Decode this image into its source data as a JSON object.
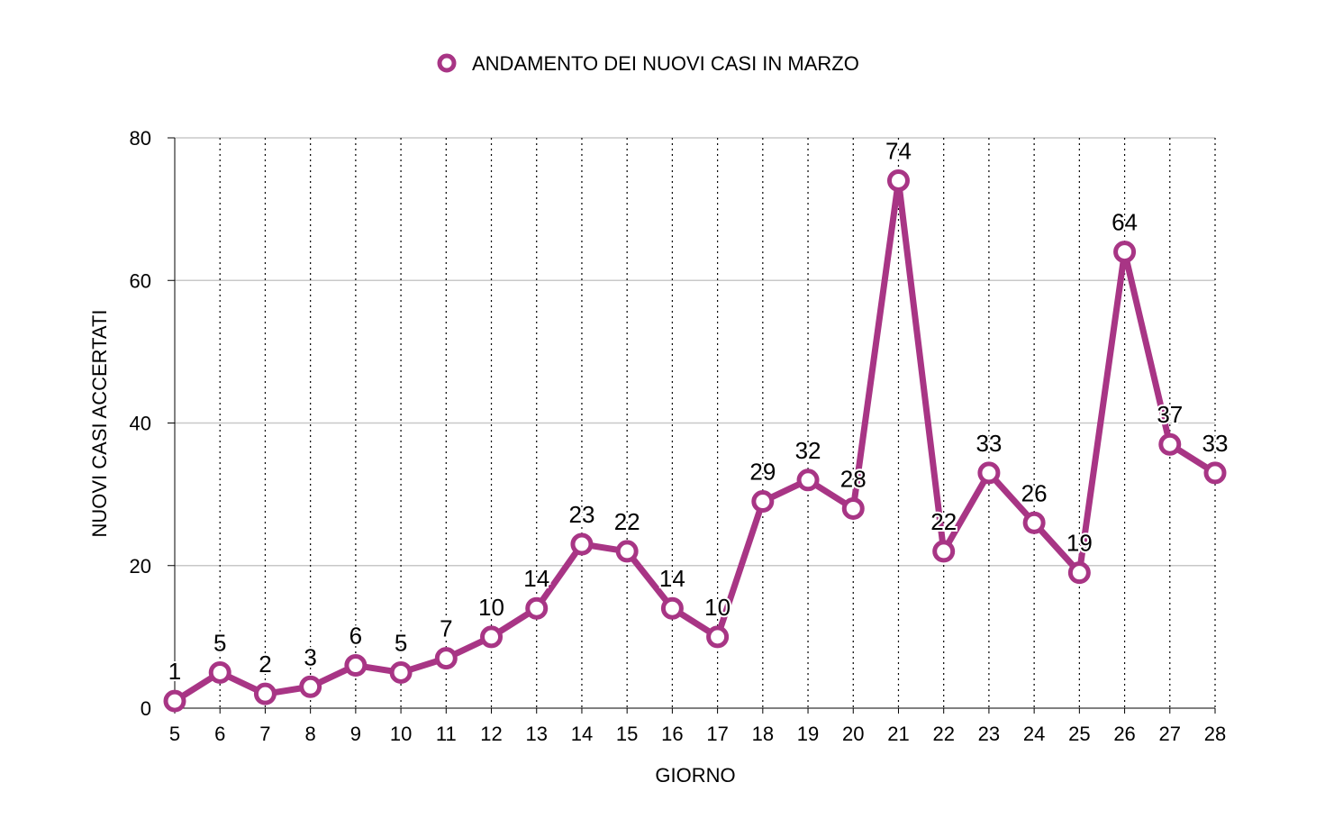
{
  "chart_data": {
    "type": "line",
    "legend": {
      "position": "top-center",
      "label": "ANDAMENTO DEI NUOVI CASI IN MARZO"
    },
    "xlabel": "GIORNO",
    "ylabel": "NUOVI CASI ACCERTATI",
    "x": [
      "5",
      "6",
      "7",
      "8",
      "9",
      "10",
      "11",
      "12",
      "13",
      "14",
      "15",
      "16",
      "17",
      "18",
      "19",
      "20",
      "21",
      "22",
      "23",
      "24",
      "25",
      "26",
      "27",
      "28"
    ],
    "ylim": [
      0,
      80
    ],
    "yticks": [
      "0",
      "20",
      "40",
      "60",
      "80"
    ],
    "grid": {
      "horizontal": "solid",
      "vertical": "dotted"
    },
    "series": [
      {
        "name": "ANDAMENTO DEI NUOVI CASI IN MARZO",
        "color": "#a83585",
        "values": [
          1,
          5,
          2,
          3,
          6,
          5,
          7,
          10,
          14,
          23,
          22,
          14,
          10,
          29,
          32,
          28,
          74,
          22,
          33,
          26,
          19,
          64,
          37,
          33
        ],
        "data_labels": [
          "1",
          "5",
          "2",
          "3",
          "6",
          "5",
          "7",
          "10",
          "14",
          "23",
          "22",
          "14",
          "10",
          "29",
          "32",
          "28",
          "74",
          "22",
          "33",
          "26",
          "19",
          "64",
          "37",
          "33"
        ]
      }
    ]
  }
}
